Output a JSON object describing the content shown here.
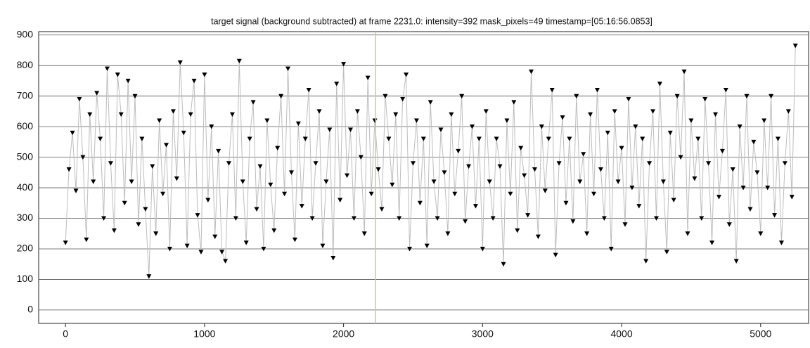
{
  "chart_data": {
    "type": "line",
    "title": "target signal (background subtracted) at frame 2231.0: intensity=392 mask_pixels=49 timestamp=[05:16:56.0853]",
    "x": [
      0,
      25,
      50,
      75,
      100,
      125,
      150,
      175,
      200,
      225,
      250,
      275,
      300,
      325,
      350,
      375,
      400,
      425,
      450,
      475,
      500,
      525,
      550,
      575,
      600,
      625,
      650,
      675,
      700,
      725,
      750,
      775,
      800,
      825,
      850,
      875,
      900,
      925,
      950,
      975,
      1000,
      1025,
      1050,
      1075,
      1100,
      1125,
      1150,
      1175,
      1200,
      1225,
      1250,
      1275,
      1300,
      1325,
      1350,
      1375,
      1400,
      1425,
      1450,
      1475,
      1500,
      1525,
      1550,
      1575,
      1600,
      1625,
      1650,
      1675,
      1700,
      1725,
      1750,
      1775,
      1800,
      1825,
      1850,
      1875,
      1900,
      1925,
      1950,
      1975,
      2000,
      2025,
      2050,
      2075,
      2100,
      2125,
      2150,
      2175,
      2200,
      2225,
      2250,
      2275,
      2300,
      2325,
      2350,
      2375,
      2400,
      2425,
      2450,
      2475,
      2500,
      2525,
      2550,
      2575,
      2600,
      2625,
      2650,
      2675,
      2700,
      2725,
      2750,
      2775,
      2800,
      2825,
      2850,
      2875,
      2900,
      2925,
      2950,
      2975,
      3000,
      3025,
      3050,
      3075,
      3100,
      3125,
      3150,
      3175,
      3200,
      3225,
      3250,
      3275,
      3300,
      3325,
      3350,
      3375,
      3400,
      3425,
      3450,
      3475,
      3500,
      3525,
      3550,
      3575,
      3600,
      3625,
      3650,
      3675,
      3700,
      3725,
      3750,
      3775,
      3800,
      3825,
      3850,
      3875,
      3900,
      3925,
      3950,
      3975,
      4000,
      4025,
      4050,
      4075,
      4100,
      4125,
      4150,
      4175,
      4200,
      4225,
      4250,
      4275,
      4300,
      4325,
      4350,
      4375,
      4400,
      4425,
      4450,
      4475,
      4500,
      4525,
      4550,
      4575,
      4600,
      4625,
      4650,
      4675,
      4700,
      4725,
      4750,
      4775,
      4800,
      4825,
      4850,
      4875,
      4900,
      4925,
      4950,
      4975,
      5000,
      5025,
      5050,
      5075,
      5100,
      5125,
      5150,
      5175,
      5200,
      5225,
      5250
    ],
    "series": [
      {
        "color": "#000000",
        "line_color": "#bdbdbd",
        "values": [
          220,
          460,
          580,
          390,
          690,
          500,
          230,
          640,
          420,
          710,
          560,
          300,
          790,
          480,
          260,
          770,
          640,
          350,
          750,
          420,
          700,
          280,
          560,
          330,
          110,
          470,
          250,
          620,
          380,
          540,
          200,
          650,
          430,
          810,
          580,
          210,
          640,
          750,
          310,
          190,
          770,
          360,
          600,
          240,
          520,
          190,
          160,
          480,
          640,
          300,
          815,
          420,
          220,
          560,
          680,
          330,
          470,
          200,
          620,
          410,
          260,
          530,
          700,
          380,
          790,
          450,
          230,
          610,
          340,
          560,
          720,
          300,
          480,
          650,
          210,
          420,
          590,
          170,
          740,
          360,
          805,
          440,
          590,
          300,
          650,
          500,
          250,
          760,
          380,
          620,
          460,
          330,
          700,
          560,
          410,
          640,
          300,
          690,
          770,
          200,
          480,
          620,
          350,
          560,
          210,
          680,
          420,
          300,
          590,
          450,
          250,
          640,
          380,
          520,
          700,
          290,
          470,
          600,
          340,
          560,
          200,
          650,
          420,
          300,
          560,
          470,
          150,
          620,
          380,
          680,
          260,
          530,
          440,
          310,
          780,
          460,
          240,
          600,
          390,
          560,
          720,
          180,
          480,
          630,
          350,
          560,
          290,
          700,
          420,
          510,
          250,
          640,
          380,
          720,
          460,
          300,
          580,
          200,
          650,
          420,
          530,
          280,
          690,
          400,
          600,
          340,
          560,
          160,
          480,
          650,
          300,
          740,
          420,
          190,
          580,
          360,
          700,
          500,
          780,
          250,
          620,
          430,
          560,
          300,
          690,
          480,
          220,
          640,
          370,
          520,
          720,
          280,
          460,
          160,
          600,
          400,
          700,
          330,
          550,
          450,
          250,
          620,
          400,
          700,
          310,
          560,
          220,
          480,
          650,
          370,
          865
        ]
      }
    ],
    "cursor_x": 2231,
    "cursor_color": "#c8d26e",
    "xlim": [
      -193,
      5345
    ],
    "ylim": [
      -44,
      911
    ],
    "xticks": [
      0,
      1000,
      2000,
      3000,
      4000,
      5000
    ],
    "yticks": [
      0,
      100,
      200,
      300,
      400,
      500,
      600,
      700,
      800,
      900
    ],
    "grid": true
  }
}
